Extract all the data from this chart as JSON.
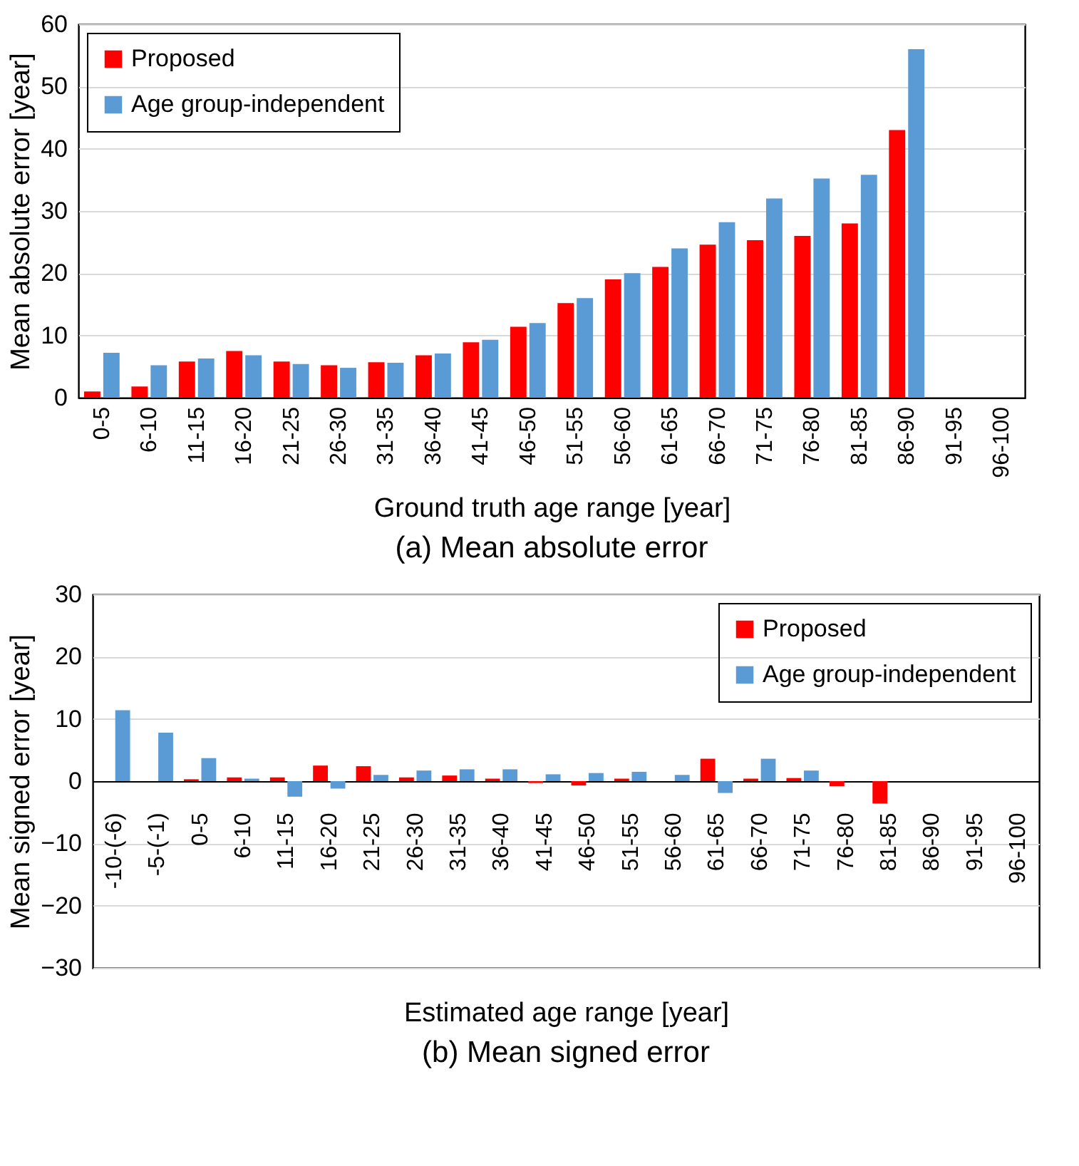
{
  "chart_data": [
    {
      "type": "bar",
      "title": "(a) Mean absolute error",
      "xlabel": "Ground truth age range [year]",
      "ylabel": "Mean absolute error [year]",
      "categories": [
        "0-5",
        "6-10",
        "11-15",
        "16-20",
        "21-25",
        "26-30",
        "31-35",
        "36-40",
        "41-45",
        "46-50",
        "51-55",
        "56-60",
        "61-65",
        "66-70",
        "71-75",
        "76-80",
        "81-85",
        "86-90",
        "91-95",
        "96-100"
      ],
      "series": [
        {
          "name": "Proposed",
          "color": "#ff0000",
          "values": [
            1.0,
            1.8,
            5.8,
            7.5,
            5.8,
            5.2,
            5.7,
            6.8,
            8.9,
            11.4,
            15.2,
            19.0,
            21.0,
            24.6,
            25.3,
            26.0,
            28.0,
            43.0,
            null,
            null
          ]
        },
        {
          "name": "Age group-independent",
          "color": "#5b9bd5",
          "values": [
            7.2,
            5.2,
            6.3,
            6.8,
            5.4,
            4.8,
            5.6,
            7.1,
            9.3,
            12.0,
            16.0,
            20.0,
            24.0,
            28.2,
            32.0,
            35.2,
            35.8,
            56.0,
            null,
            null
          ]
        }
      ],
      "ylim": [
        0,
        60
      ],
      "yticks": [
        0,
        10,
        20,
        30,
        40,
        50,
        60
      ],
      "grid": "y",
      "legend": "top left"
    },
    {
      "type": "bar",
      "title": "(b) Mean signed error",
      "xlabel": "Estimated age range [year]",
      "ylabel": "Mean signed error [year]",
      "categories": [
        "-10-(-6)",
        "-5-(-1)",
        "0-5",
        "6-10",
        "11-15",
        "16-20",
        "21-25",
        "26-30",
        "31-35",
        "36-40",
        "41-45",
        "46-50",
        "51-55",
        "56-60",
        "61-65",
        "66-70",
        "71-75",
        "76-80",
        "81-85",
        "86-90",
        "91-95",
        "96-100"
      ],
      "series": [
        {
          "name": "Proposed",
          "color": "#ff0000",
          "values": [
            null,
            null,
            0.3,
            0.6,
            0.6,
            2.5,
            2.4,
            0.6,
            0.9,
            0.4,
            -0.3,
            -0.7,
            0.4,
            null,
            3.6,
            0.4,
            0.5,
            -0.8,
            -3.6,
            null,
            null,
            null
          ]
        },
        {
          "name": "Age group-independent",
          "color": "#5b9bd5",
          "values": [
            11.4,
            7.8,
            3.7,
            0.4,
            -2.5,
            -1.2,
            1.0,
            1.7,
            1.9,
            1.9,
            1.1,
            1.3,
            1.5,
            1.0,
            -1.9,
            3.6,
            1.7,
            null,
            null,
            null,
            null,
            null
          ]
        }
      ],
      "ylim": [
        -30,
        30
      ],
      "yticks": [
        -30,
        -20,
        -10,
        0,
        10,
        20,
        30
      ],
      "grid": "y",
      "legend": "top right"
    }
  ]
}
